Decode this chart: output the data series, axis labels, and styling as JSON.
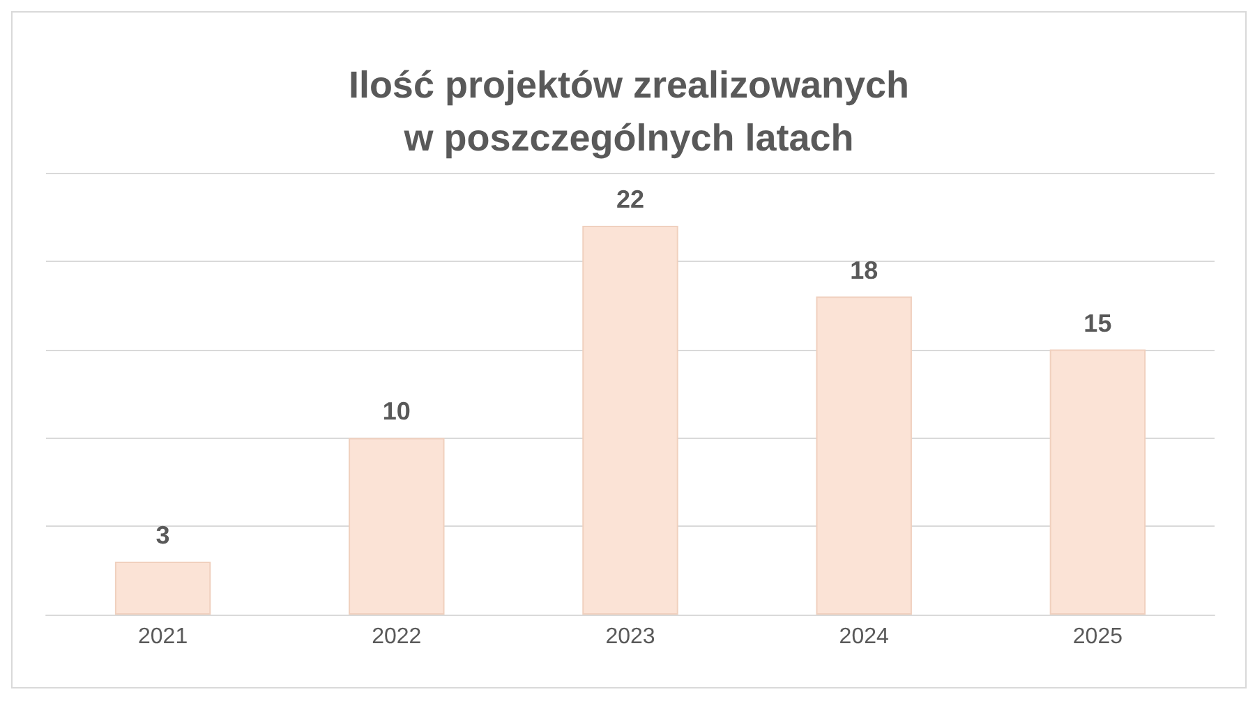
{
  "chart_data": {
    "type": "bar",
    "title": "Ilość projektów zrealizowanych\nw poszczególnych latach",
    "categories": [
      "2021",
      "2022",
      "2023",
      "2024",
      "2025"
    ],
    "values": [
      3,
      10,
      22,
      18,
      15
    ],
    "color": "#fbe3d6",
    "ylim": [
      0,
      25
    ],
    "yticks": [
      0,
      5,
      10,
      15,
      20,
      25
    ],
    "grid": "y",
    "tick_labels": "x",
    "data_labels": true
  }
}
